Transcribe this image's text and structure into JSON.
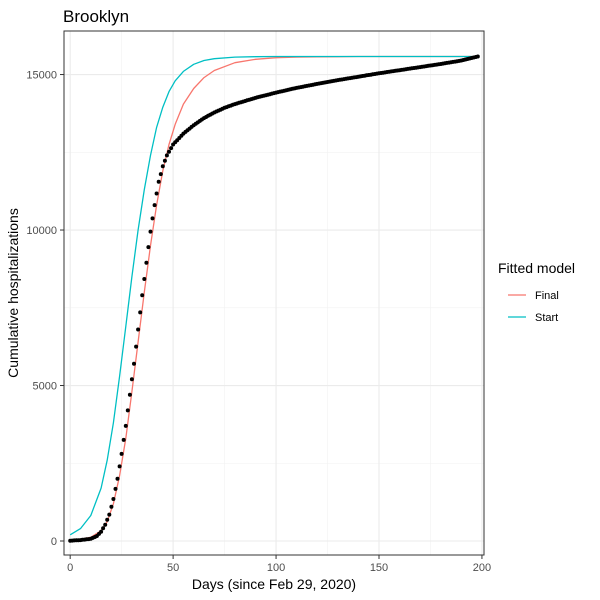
{
  "chart_data": {
    "type": "line",
    "title": "Brooklyn",
    "xlabel": "Days (since Feb 29, 2020)",
    "ylabel": "Cumulative hospitalizations",
    "xlim": [
      -3,
      201
    ],
    "ylim": [
      -450,
      16400
    ],
    "x_ticks": [
      0,
      50,
      100,
      150,
      200
    ],
    "x_tick_labels": [
      "0",
      "50",
      "100",
      "150",
      "200"
    ],
    "y_ticks": [
      0,
      5000,
      10000,
      15000
    ],
    "y_tick_labels": [
      "0",
      "5000",
      "10000",
      "15000"
    ],
    "grid": true,
    "legend": {
      "title": "Fitted model",
      "placement": "right",
      "entries": [
        {
          "label": "Final",
          "color": "#F8766D"
        },
        {
          "label": "Start",
          "color": "#00BFC4"
        }
      ]
    },
    "observed": {
      "style": "points",
      "color": "#000000",
      "x": [
        0,
        5,
        10,
        13,
        15,
        17,
        19,
        21,
        23,
        25,
        27,
        29,
        31,
        33,
        35,
        37,
        39,
        41,
        43,
        45,
        47,
        50,
        55,
        60,
        65,
        70,
        75,
        80,
        90,
        100,
        110,
        120,
        130,
        140,
        150,
        160,
        170,
        180,
        190,
        198
      ],
      "y": [
        10,
        30,
        70,
        160,
        300,
        520,
        850,
        1350,
        2000,
        2800,
        3700,
        4700,
        5700,
        6800,
        7900,
        8950,
        9950,
        10800,
        11550,
        12050,
        12400,
        12750,
        13100,
        13370,
        13600,
        13780,
        13930,
        14050,
        14250,
        14420,
        14570,
        14700,
        14820,
        14930,
        15040,
        15140,
        15240,
        15340,
        15450,
        15580
      ]
    },
    "series": [
      {
        "name": "Final",
        "color": "#F8766D",
        "x": [
          0,
          5,
          10,
          15,
          18,
          21,
          24,
          27,
          30,
          33,
          36,
          39,
          42,
          45,
          48,
          51,
          55,
          60,
          65,
          70,
          80,
          90,
          100,
          110,
          120,
          130,
          140,
          160,
          180,
          198
        ],
        "y": [
          40,
          60,
          120,
          330,
          620,
          1200,
          2100,
          3300,
          4800,
          6400,
          8000,
          9500,
          10800,
          11900,
          12750,
          13400,
          14050,
          14550,
          14900,
          15130,
          15380,
          15490,
          15540,
          15560,
          15570,
          15575,
          15580,
          15580,
          15580,
          15580
        ]
      },
      {
        "name": "Start",
        "color": "#00BFC4",
        "x": [
          0,
          5,
          10,
          15,
          18,
          21,
          24,
          27,
          30,
          33,
          36,
          39,
          42,
          45,
          48,
          51,
          55,
          60,
          65,
          70,
          80,
          90,
          100,
          120,
          150,
          198
        ],
        "y": [
          200,
          400,
          820,
          1700,
          2600,
          3800,
          5300,
          6900,
          8500,
          10000,
          11300,
          12400,
          13300,
          13950,
          14450,
          14800,
          15100,
          15330,
          15450,
          15510,
          15560,
          15575,
          15580,
          15580,
          15580,
          15580
        ]
      }
    ]
  }
}
